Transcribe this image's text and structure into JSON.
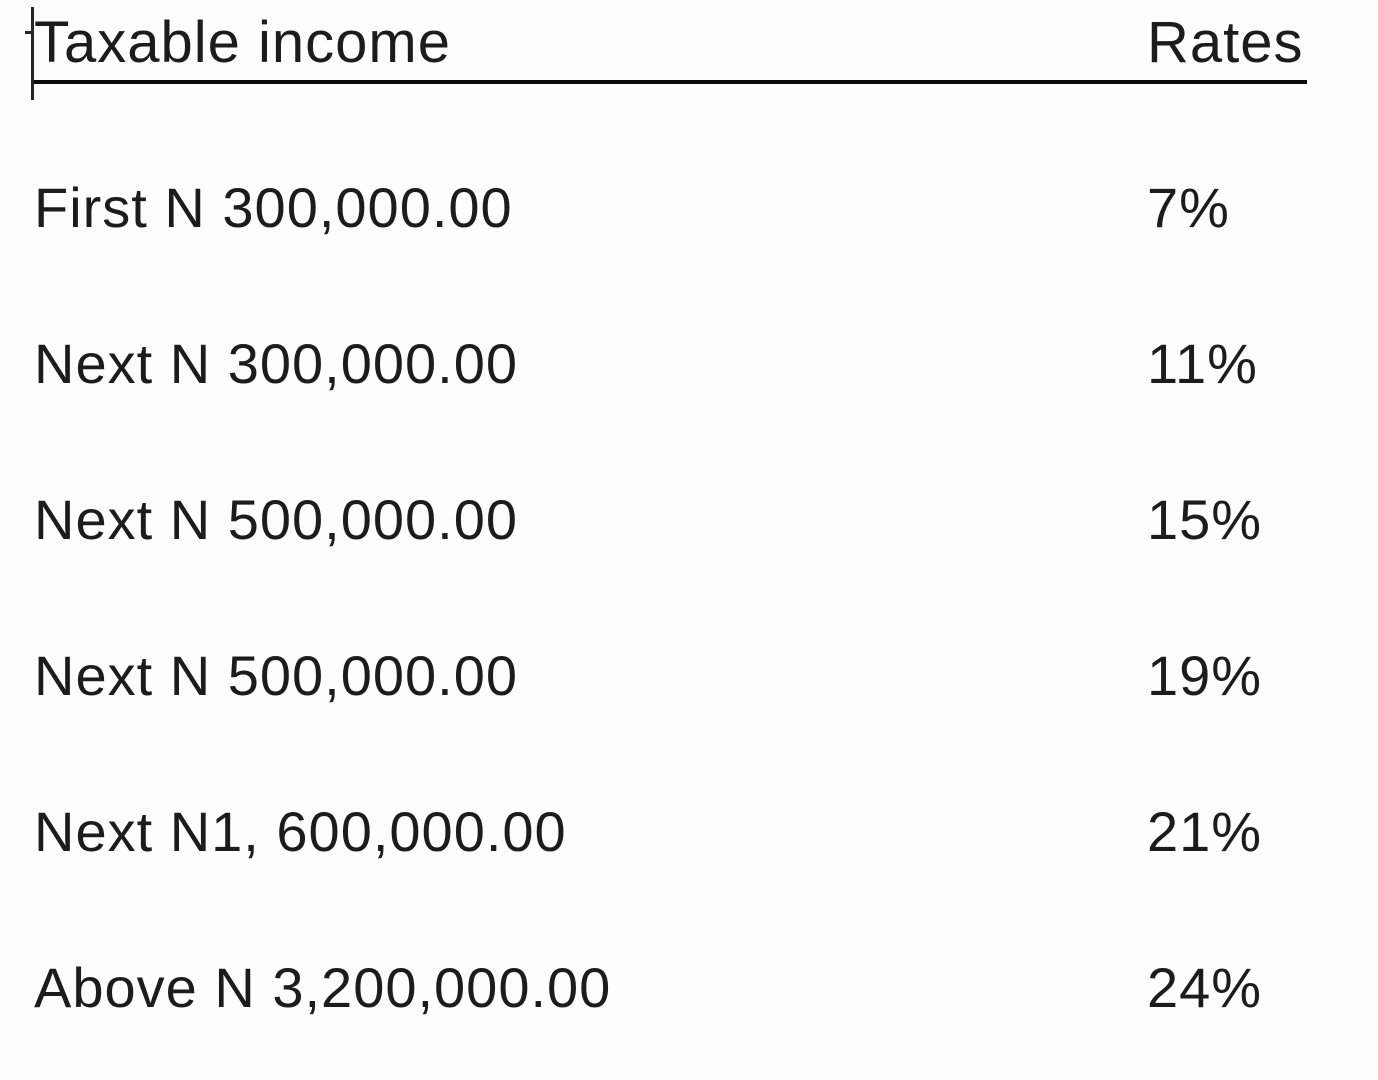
{
  "colors": {
    "text": "#1c1c1c",
    "header_rule": "#0a0a0a",
    "background": "#fdfdfc"
  },
  "table": {
    "headers": {
      "income": "Taxable income",
      "rates": "Rates"
    },
    "rows": [
      {
        "income": "First N 300,000.00",
        "rate": "7%"
      },
      {
        "income": "Next N 300,000.00",
        "rate": "11%"
      },
      {
        "income": "Next N 500,000.00",
        "rate": "15%"
      },
      {
        "income": "Next N 500,000.00",
        "rate": "19%"
      },
      {
        "income": "Next N1, 600,000.00",
        "rate": "21%"
      },
      {
        "income": "Above N 3,200,000.00",
        "rate": "24%"
      }
    ]
  },
  "cursor": {
    "type": "text-insertion-caret"
  }
}
